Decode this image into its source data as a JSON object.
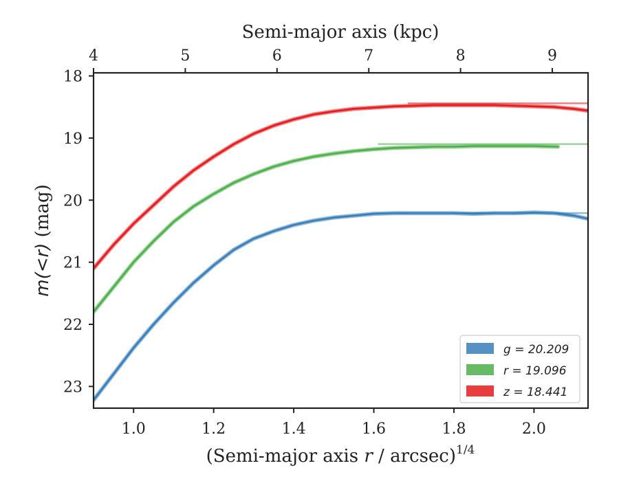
{
  "chart_data": {
    "type": "line",
    "title": "",
    "xlabel_main": "r",
    "xlabel_prefix": "(Semi-major axis ",
    "xlabel_suffix": " / arcsec)",
    "xlabel_sup": "1/4",
    "xlabel_top": "Semi-major axis (kpc)",
    "ylabel_main": "m(<r)",
    "ylabel_unit": " (mag)",
    "xlim": [
      0.9,
      2.135
    ],
    "ylim": [
      23.35,
      17.95
    ],
    "y_inverted": true,
    "xticks": [
      1.0,
      1.2,
      1.4,
      1.6,
      1.8,
      2.0
    ],
    "xtick_labels": [
      "1.0",
      "1.2",
      "1.4",
      "1.6",
      "1.8",
      "2.0"
    ],
    "yticks": [
      18,
      19,
      20,
      21,
      22,
      23
    ],
    "ytick_labels": [
      "18",
      "19",
      "20",
      "21",
      "22",
      "23"
    ],
    "top_xticks_kpc": [
      4,
      5,
      6,
      7,
      8,
      9
    ],
    "top_xtick_labels": [
      "4",
      "5",
      "6",
      "7",
      "8",
      "9"
    ],
    "top_axis_kpc_at_x": [
      [
        0.9,
        4.0
      ],
      [
        2.135,
        9.39
      ]
    ],
    "legend_position": "lower-right",
    "grid": false,
    "series": [
      {
        "name": "g",
        "legend_label": "g = 20.209",
        "color": "#377eb8",
        "asymptote": 20.209,
        "x": [
          0.9,
          0.95,
          1.0,
          1.05,
          1.1,
          1.15,
          1.2,
          1.25,
          1.3,
          1.35,
          1.4,
          1.45,
          1.5,
          1.55,
          1.6,
          1.65,
          1.7,
          1.75,
          1.8,
          1.85,
          1.9,
          1.95,
          2.0,
          2.05,
          2.1,
          2.135
        ],
        "values": [
          23.22,
          22.8,
          22.38,
          22.0,
          21.65,
          21.33,
          21.05,
          20.8,
          20.62,
          20.5,
          20.4,
          20.33,
          20.28,
          20.25,
          20.22,
          20.21,
          20.21,
          20.21,
          20.21,
          20.22,
          20.21,
          20.21,
          20.2,
          20.21,
          20.25,
          20.3
        ]
      },
      {
        "name": "r",
        "legend_label": "r = 19.096",
        "color": "#4daf4a",
        "asymptote": 19.096,
        "x": [
          0.9,
          0.95,
          1.0,
          1.05,
          1.1,
          1.15,
          1.2,
          1.25,
          1.3,
          1.35,
          1.4,
          1.45,
          1.5,
          1.55,
          1.6,
          1.65,
          1.7,
          1.75,
          1.8,
          1.85,
          1.9,
          1.95,
          2.0,
          2.06
        ],
        "values": [
          21.8,
          21.4,
          21.0,
          20.66,
          20.35,
          20.1,
          19.9,
          19.72,
          19.58,
          19.46,
          19.37,
          19.3,
          19.25,
          19.21,
          19.18,
          19.16,
          19.15,
          19.14,
          19.14,
          19.13,
          19.13,
          19.13,
          19.13,
          19.14
        ]
      },
      {
        "name": "z",
        "legend_label": "z = 18.441",
        "color": "#e41a1c",
        "asymptote": 18.441,
        "x": [
          0.9,
          0.95,
          1.0,
          1.05,
          1.1,
          1.15,
          1.2,
          1.25,
          1.3,
          1.35,
          1.4,
          1.45,
          1.5,
          1.55,
          1.6,
          1.65,
          1.7,
          1.75,
          1.8,
          1.85,
          1.9,
          1.95,
          2.0,
          2.05,
          2.1,
          2.135
        ],
        "values": [
          21.1,
          20.72,
          20.38,
          20.08,
          19.78,
          19.52,
          19.3,
          19.1,
          18.93,
          18.8,
          18.7,
          18.62,
          18.57,
          18.53,
          18.51,
          18.49,
          18.48,
          18.47,
          18.47,
          18.47,
          18.47,
          18.48,
          18.49,
          18.5,
          18.53,
          18.56
        ]
      }
    ]
  }
}
